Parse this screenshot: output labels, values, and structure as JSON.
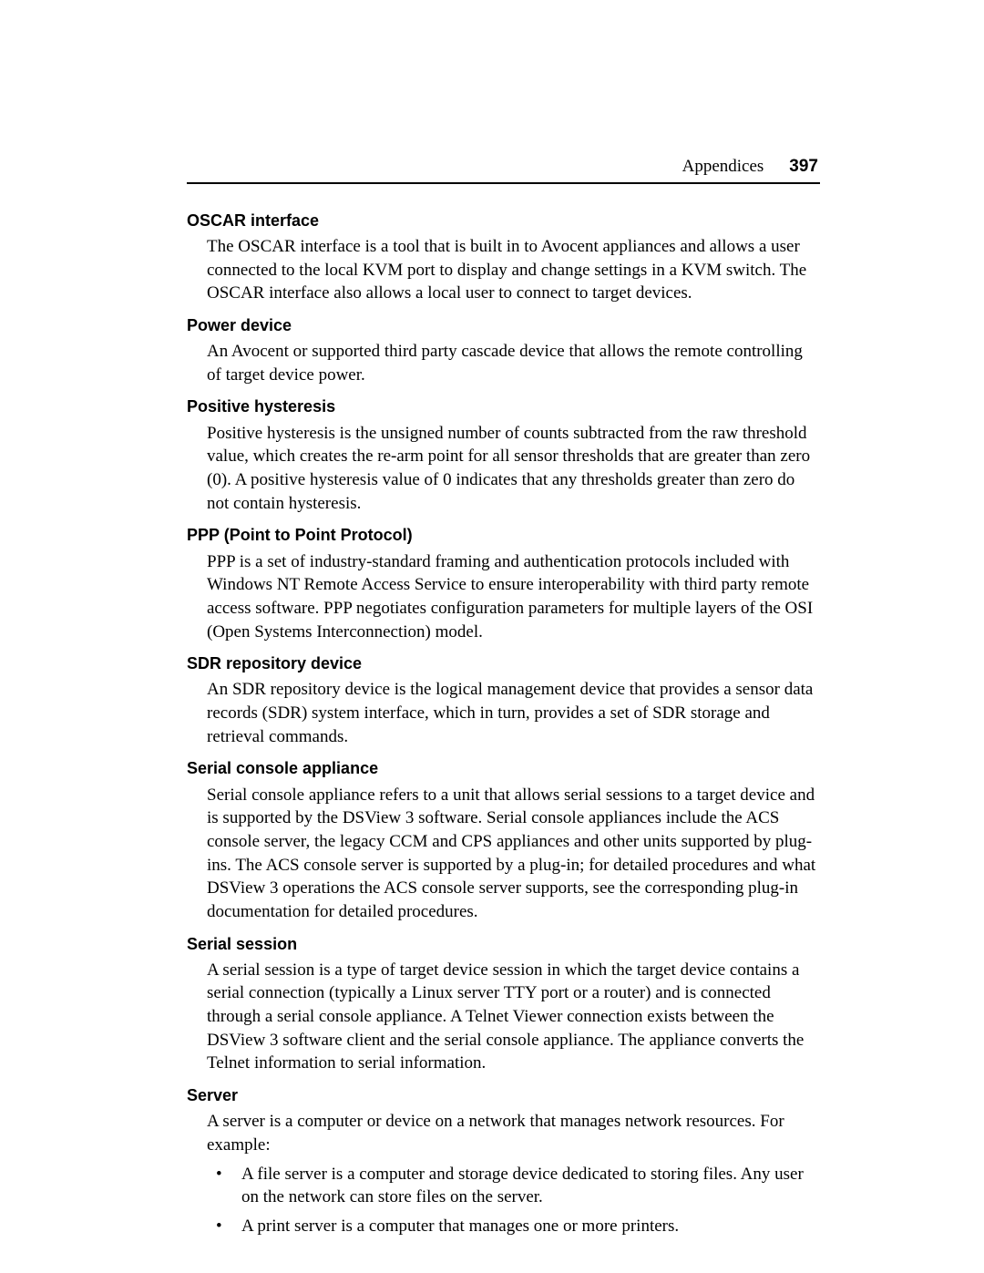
{
  "header": {
    "section": "Appendices",
    "page_number": "397"
  },
  "entries": [
    {
      "term": "OSCAR interface",
      "definition": "The OSCAR interface is a tool that is built in to Avocent appliances and allows a user connected to the local KVM port to display and change settings in a KVM switch. The OSCAR interface also allows a local user to connect to target devices."
    },
    {
      "term": "Power device",
      "definition": "An Avocent or supported third party cascade device that allows the remote controlling of target device power."
    },
    {
      "term": "Positive hysteresis",
      "definition": "Positive hysteresis is the unsigned number of counts subtracted from the raw threshold value, which creates the re-arm point for all sensor thresholds that are greater than zero (0). A positive hysteresis value of 0 indicates that any thresholds greater than zero do not contain hysteresis."
    },
    {
      "term": "PPP (Point to Point Protocol)",
      "definition": "PPP is a set of industry-standard framing and authentication protocols included with Windows NT Remote Access Service to ensure interoperability with third party remote access software. PPP negotiates configuration parameters for multiple layers of the OSI (Open Systems Interconnection) model."
    },
    {
      "term": "SDR repository device",
      "definition": "An SDR repository device is the logical management device that provides a sensor data records (SDR) system interface, which in turn, provides a set of SDR storage and retrieval commands."
    },
    {
      "term": "Serial console appliance",
      "definition": "Serial console appliance refers to a unit that allows serial sessions to a target device and is supported by the DSView 3 software. Serial console appliances include the ACS console server, the legacy CCM and CPS appliances and other units supported by plug-ins. The ACS console server is supported by a plug-in; for detailed procedures and what DSView 3 operations the ACS console server supports, see the corresponding plug-in documentation for detailed procedures."
    },
    {
      "term": "Serial session",
      "definition": "A serial session is a type of target device session in which the target device contains a serial connection (typically a Linux server TTY port or a router) and is connected through a serial console appliance. A Telnet Viewer connection exists between the DSView 3 software client and the serial console appliance. The appliance converts the Telnet information to serial information."
    },
    {
      "term": "Server",
      "definition": "A server is a computer or device on a network that manages network resources. For example:",
      "bullets": [
        "A file server is a computer and storage device dedicated to storing files. Any user on the network can store files on the server.",
        "A print server is a computer that manages one or more printers."
      ]
    }
  ]
}
